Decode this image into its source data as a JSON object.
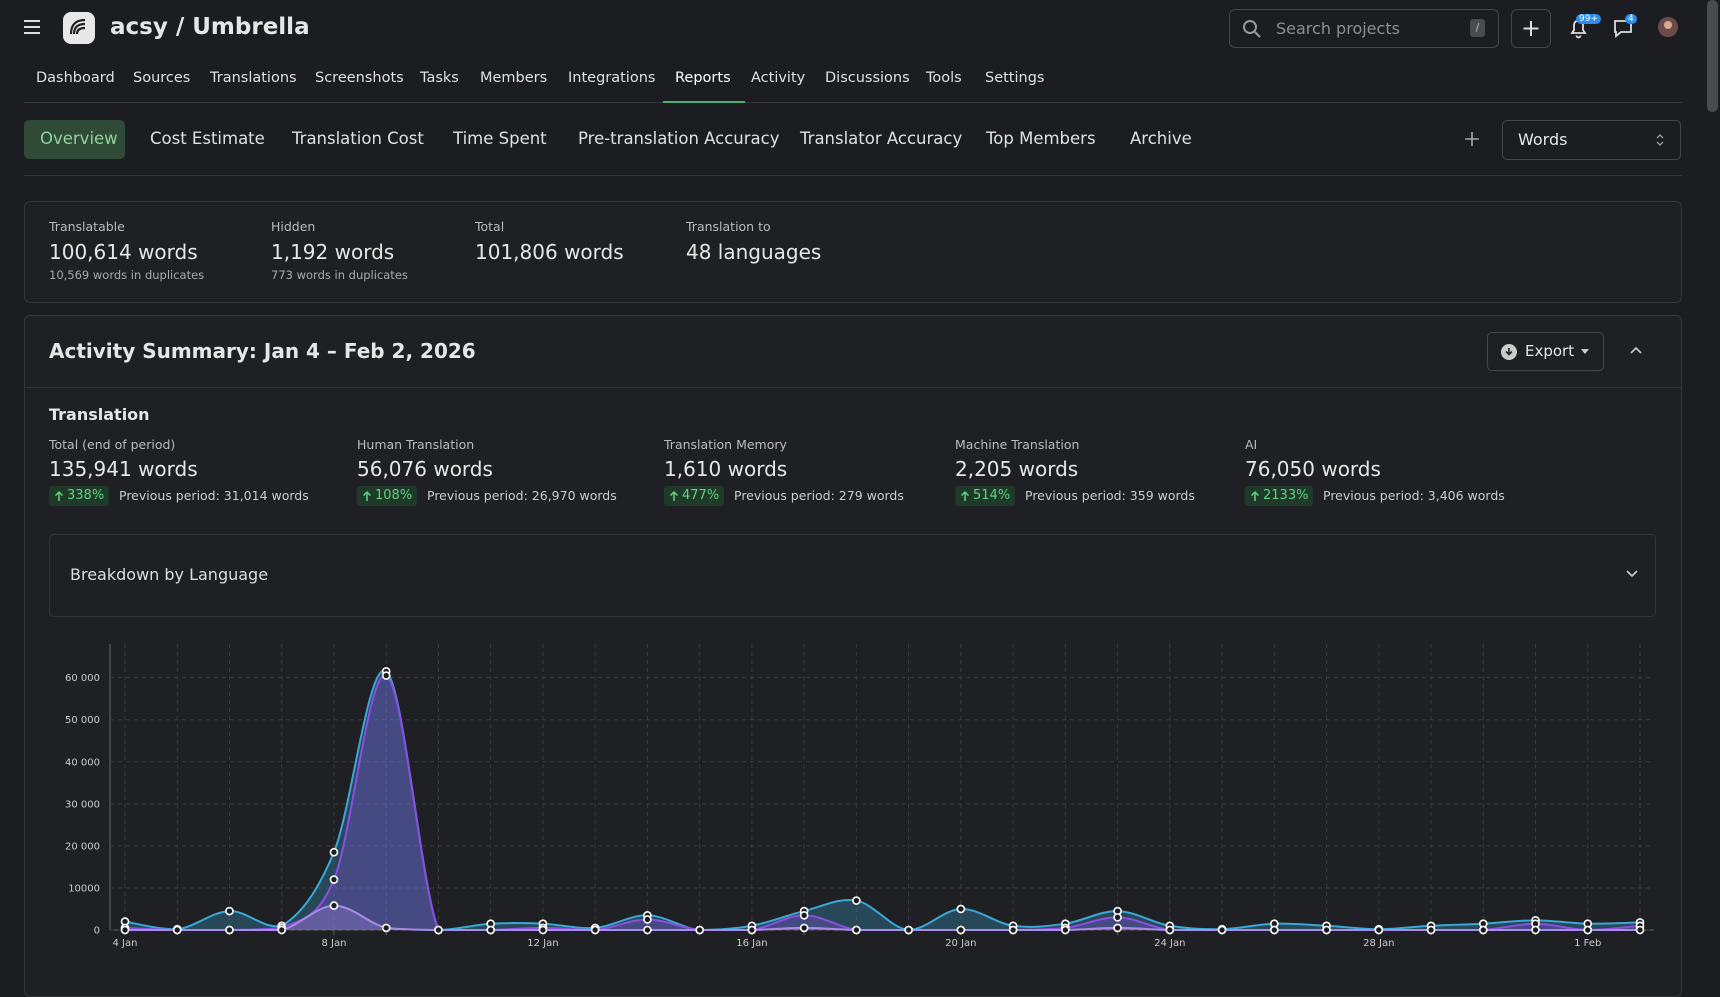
{
  "header": {
    "brand": "acsy / Umbrella",
    "search_placeholder": "Search projects",
    "search_shortcut": "/",
    "notifications_badge": "99+",
    "messages_badge": "4"
  },
  "nav": {
    "items": [
      "Dashboard",
      "Sources",
      "Translations",
      "Screenshots",
      "Tasks",
      "Members",
      "Integrations",
      "Reports",
      "Activity",
      "Discussions",
      "Tools",
      "Settings"
    ],
    "active": 7
  },
  "tabs": {
    "items": [
      "Overview",
      "Cost Estimate",
      "Translation Cost",
      "Time Spent",
      "Pre-translation Accuracy",
      "Translator Accuracy",
      "Top Members",
      "Archive"
    ],
    "active": 0,
    "unit_select": "Words"
  },
  "stats": [
    {
      "label": "Translatable",
      "value": "100,614 words",
      "sub": "10,569 words in duplicates"
    },
    {
      "label": "Hidden",
      "value": "1,192 words",
      "sub": "773 words in duplicates"
    },
    {
      "label": "Total",
      "value": "101,806 words"
    },
    {
      "label": "Translation to",
      "value": "48 languages"
    }
  ],
  "activity": {
    "title": "Activity Summary: Jan 4 – Feb 2, 2026",
    "export": "Export",
    "section": "Translation",
    "metrics": [
      {
        "label": "Total (end of period)",
        "value": "135,941 words",
        "change": "338%",
        "previous": "Previous period: 31,014 words"
      },
      {
        "label": "Human Translation",
        "value": "56,076 words",
        "change": "108%",
        "previous": "Previous period: 26,970 words"
      },
      {
        "label": "Translation Memory",
        "value": "1,610 words",
        "change": "477%",
        "previous": "Previous period: 279 words"
      },
      {
        "label": "Machine Translation",
        "value": "2,205 words",
        "change": "514%",
        "previous": "Previous period: 359 words"
      },
      {
        "label": "AI",
        "value": "76,050 words",
        "change": "2133%",
        "previous": "Previous period: 3,406 words"
      }
    ],
    "breakdown": "Breakdown by Language"
  },
  "chart_data": {
    "type": "area",
    "categories": [
      "4 Jan",
      null,
      null,
      null,
      "8 Jan",
      null,
      null,
      null,
      "12 Jan",
      null,
      null,
      null,
      "16 Jan",
      null,
      null,
      null,
      "20 Jan",
      null,
      null,
      null,
      "24 Jan",
      null,
      null,
      null,
      "28 Jan",
      null,
      null,
      null,
      "1 Feb",
      null
    ],
    "series": [
      {
        "color": "#3ba7d6",
        "values": [
          2000,
          200,
          4500,
          1000,
          18500,
          61500,
          0,
          1500,
          1500,
          500,
          3500,
          0,
          1000,
          4500,
          7000,
          0,
          5000,
          1000,
          1500,
          4500,
          1000,
          200,
          1500,
          1000,
          200,
          1000,
          1500,
          2300,
          1500,
          1800
        ]
      },
      {
        "color": "#8a4fe0",
        "values": [
          500,
          0,
          0,
          500,
          12000,
          60500,
          0,
          0,
          500,
          0,
          2500,
          0,
          0,
          3500,
          0,
          0,
          0,
          0,
          500,
          3000,
          0,
          0,
          0,
          0,
          0,
          0,
          0,
          1500,
          0,
          1000
        ]
      },
      {
        "color": "#a98be8",
        "values": [
          0,
          0,
          0,
          0,
          5800,
          500,
          0,
          0,
          0,
          0,
          0,
          0,
          0,
          500,
          0,
          0,
          0,
          0,
          0,
          500,
          0,
          0,
          0,
          0,
          0,
          0,
          0,
          0,
          0,
          0
        ]
      }
    ],
    "ylim": [
      0,
      68000
    ],
    "yticks": [
      0,
      10000,
      {
        "value": 20000,
        "label": "20 000"
      },
      {
        "value": 30000,
        "label": "30 000"
      },
      {
        "value": 40000,
        "label": "40 000"
      },
      {
        "value": 50000,
        "label": "50 000"
      },
      {
        "value": 60000,
        "label": "60 000"
      }
    ],
    "grid": true
  }
}
